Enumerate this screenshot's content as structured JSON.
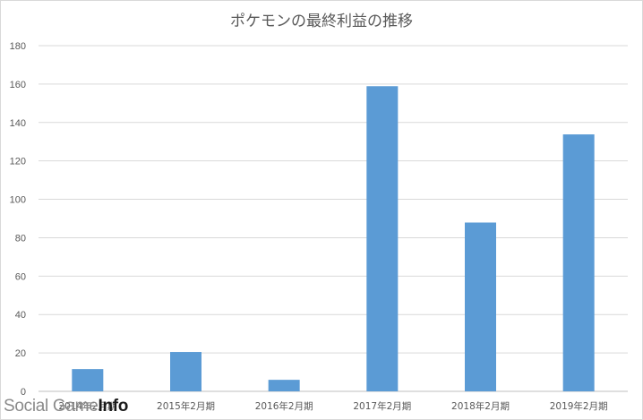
{
  "chart_data": {
    "type": "bar",
    "title": "ポケモンの最終利益の推移",
    "categories": [
      "2014年2月期",
      "2015年2月期",
      "2016年2月期",
      "2017年2月期",
      "2018年2月期",
      "2019年2月期"
    ],
    "values": [
      11.6,
      20.5,
      6,
      158.9,
      87.9,
      133.8
    ],
    "ylim": [
      0,
      180
    ],
    "yticks": [
      0,
      20,
      40,
      60,
      80,
      100,
      120,
      140,
      160,
      180
    ],
    "xlabel": "",
    "ylabel": "",
    "grid": true,
    "legend": "none",
    "bar_color": "#5b9bd5",
    "grid_color": "#d9d9d9",
    "axis_color": "#bfbfbf",
    "text_color": "#595959"
  },
  "watermark": {
    "text_prefix": "Social Game",
    "text_suffix": "Info"
  }
}
